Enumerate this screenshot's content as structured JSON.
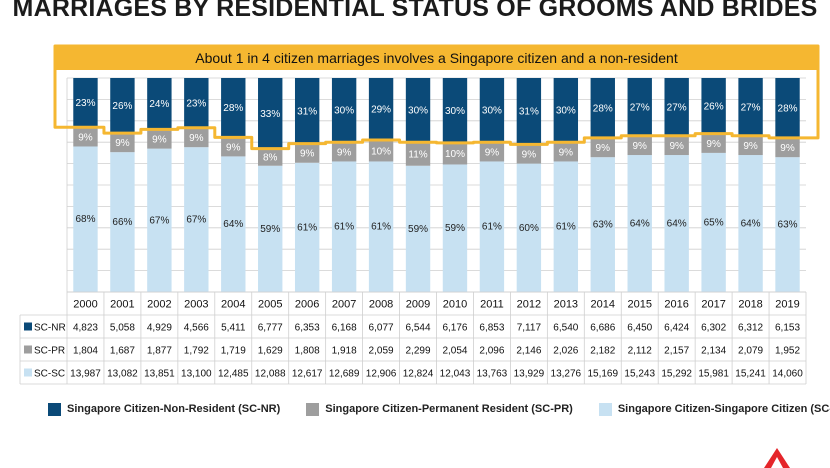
{
  "colors": {
    "sc_nr": "#0b4a78",
    "sc_pr": "#9e9e9e",
    "sc_sc": "#c7e1f2",
    "highlight": "#f5b731",
    "grid": "#cfcfcf",
    "logo": "#e5252a"
  },
  "icons": {
    "logo": "red-triangle-logo-icon"
  },
  "chart_data": {
    "type": "bar",
    "stacked": true,
    "normalized": true,
    "title": "MARRIAGES BY RESIDENTIAL STATUS OF GROOMS AND BRIDES",
    "annotation": "About 1 in 4 citizen marriages involves a Singapore citizen and a non-resident",
    "ylim": [
      0,
      100
    ],
    "grid": true,
    "legend_position": "bottom",
    "categories": [
      "2000",
      "2001",
      "2002",
      "2003",
      "2004",
      "2005",
      "2006",
      "2007",
      "2008",
      "2009",
      "2010",
      "2011",
      "2012",
      "2013",
      "2014",
      "2015",
      "2016",
      "2017",
      "2018",
      "2019"
    ],
    "series": [
      {
        "key": "sc_sc",
        "name": "Singapore Citizen-Singapore Citizen (SC-SC)",
        "row_label": "SC-SC",
        "percent": [
          68,
          66,
          67,
          67,
          64,
          59,
          61,
          61,
          61,
          59,
          59,
          61,
          60,
          61,
          63,
          64,
          64,
          65,
          64,
          63
        ],
        "percent_labels": [
          "68%",
          "66%",
          "67%",
          "67%",
          "64%",
          "59%",
          "61%",
          "61%",
          "61%",
          "59%",
          "59%",
          "61%",
          "60%",
          "61%",
          "63%",
          "64%",
          "64%",
          "65%",
          "64%",
          "63%"
        ],
        "counts": [
          "13,987",
          "13,082",
          "13,851",
          "13,100",
          "12,485",
          "12,088",
          "12,617",
          "12,689",
          "12,906",
          "12,824",
          "12,043",
          "13,763",
          "13,929",
          "13,276",
          "15,169",
          "15,243",
          "15,292",
          "15,981",
          "15,241",
          "14,060"
        ]
      },
      {
        "key": "sc_pr",
        "name": "Singapore Citizen-Permanent Resident (SC-PR)",
        "row_label": "SC-PR",
        "percent": [
          9,
          9,
          9,
          9,
          9,
          8,
          9,
          9,
          10,
          11,
          10,
          9,
          9,
          9,
          9,
          9,
          9,
          9,
          9,
          9
        ],
        "percent_labels": [
          "9%",
          "9%",
          "9%",
          "9%",
          "9%",
          "8%",
          "9%",
          "9%",
          "10%",
          "11%",
          "10%",
          "9%",
          "9%",
          "9%",
          "9%",
          "9%",
          "9%",
          "9%",
          "9%",
          "9%"
        ],
        "counts": [
          "1,804",
          "1,687",
          "1,877",
          "1,792",
          "1,719",
          "1,629",
          "1,808",
          "1,918",
          "2,059",
          "2,299",
          "2,054",
          "2,096",
          "2,146",
          "2,026",
          "2,182",
          "2,112",
          "2,157",
          "2,134",
          "2,079",
          "1,952"
        ]
      },
      {
        "key": "sc_nr",
        "name": "Singapore Citizen-Non-Resident (SC-NR)",
        "row_label": "SC-NR",
        "percent": [
          23,
          26,
          24,
          23,
          28,
          33,
          31,
          30,
          29,
          30,
          30,
          30,
          31,
          30,
          28,
          27,
          27,
          26,
          27,
          28
        ],
        "percent_labels": [
          "23%",
          "26%",
          "24%",
          "23%",
          "28%",
          "33%",
          "31%",
          "30%",
          "29%",
          "30%",
          "30%",
          "30%",
          "31%",
          "30%",
          "28%",
          "27%",
          "27%",
          "26%",
          "27%",
          "28%"
        ],
        "counts": [
          "4,823",
          "5,058",
          "4,929",
          "4,566",
          "5,411",
          "6,777",
          "6,353",
          "6,168",
          "6,077",
          "6,544",
          "6,176",
          "6,853",
          "7,117",
          "6,540",
          "6,686",
          "6,450",
          "6,424",
          "6,302",
          "6,312",
          "6,153"
        ]
      }
    ]
  }
}
